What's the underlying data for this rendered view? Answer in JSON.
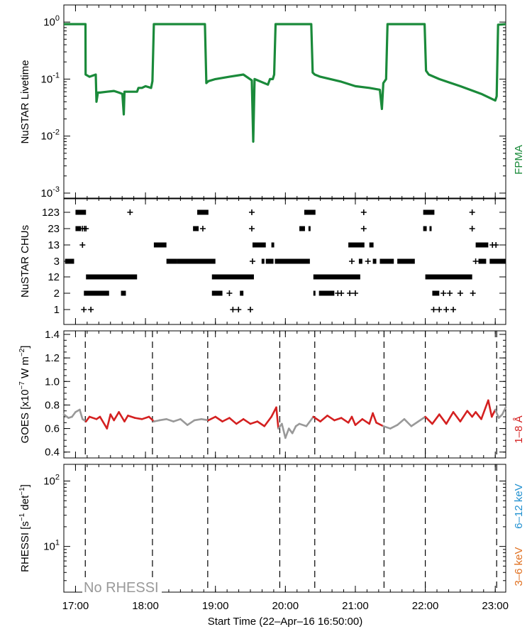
{
  "colors": {
    "fpma": "#1a8a3a",
    "goes_on": "#d42020",
    "goes_off": "#999999",
    "rhessi_low": "#e07020",
    "rhessi_high": "#2090d0",
    "no_rhessi": "#999999"
  },
  "x_axis": {
    "label": "Start Time (22–Apr–16 16:50:00)",
    "ticks": [
      {
        "t": 17,
        "label": "17:00"
      },
      {
        "t": 18,
        "label": "18:00"
      },
      {
        "t": 19,
        "label": "19:00"
      },
      {
        "t": 20,
        "label": "20:00"
      },
      {
        "t": 21,
        "label": "21:00"
      },
      {
        "t": 22,
        "label": "22:00"
      },
      {
        "t": 23,
        "label": "23:00"
      }
    ],
    "range_hours": [
      16.8333,
      23.15
    ]
  },
  "chart_data": [
    {
      "type": "line",
      "ylabel": "NuSTAR Livetime",
      "yscale": "log",
      "ylim_log10": [
        -3.1,
        0.3
      ],
      "y_ticks": [
        {
          "exp": "0",
          "value": 1
        },
        {
          "exp": "-1",
          "value": 0.1
        },
        {
          "exp": "-2",
          "value": 0.01
        },
        {
          "exp": "-3",
          "value": 0.001
        }
      ],
      "legend": "FPMA",
      "series": [
        {
          "name": "FPMA",
          "x": [
            16.833,
            17.143,
            17.145,
            17.2,
            17.29,
            17.3,
            17.32,
            17.35,
            17.45,
            17.55,
            17.62,
            17.67,
            17.69,
            17.7,
            17.88,
            17.9,
            17.95,
            18.0,
            18.08,
            18.1,
            18.12,
            18.15,
            18.7,
            18.8,
            18.85,
            18.87,
            18.9,
            19.0,
            19.2,
            19.4,
            19.52,
            19.54,
            19.56,
            19.75,
            19.78,
            19.82,
            19.84,
            19.86,
            19.95,
            20.05,
            20.2,
            20.37,
            20.39,
            20.42,
            20.5,
            20.8,
            21.0,
            21.2,
            21.35,
            21.38,
            21.4,
            21.44,
            21.46,
            21.48,
            21.6,
            21.85,
            21.99,
            22.01,
            22.05,
            22.2,
            22.5,
            22.8,
            23.0,
            23.02,
            23.04,
            23.15
          ],
          "y": [
            0.92,
            0.92,
            0.12,
            0.11,
            0.12,
            0.04,
            0.058,
            0.058,
            0.06,
            0.062,
            0.058,
            0.055,
            0.024,
            0.06,
            0.06,
            0.07,
            0.07,
            0.075,
            0.07,
            0.092,
            0.92,
            0.92,
            0.92,
            0.92,
            0.92,
            0.085,
            0.092,
            0.1,
            0.11,
            0.12,
            0.095,
            0.008,
            0.1,
            0.08,
            0.1,
            0.1,
            0.12,
            0.92,
            0.92,
            0.92,
            0.92,
            0.92,
            0.13,
            0.12,
            0.11,
            0.09,
            0.075,
            0.07,
            0.065,
            0.03,
            0.085,
            0.1,
            0.92,
            0.92,
            0.92,
            0.92,
            0.92,
            0.14,
            0.12,
            0.1,
            0.075,
            0.055,
            0.042,
            0.05,
            0.9,
            0.92
          ]
        }
      ]
    },
    {
      "type": "scatter",
      "ylabel": "NuSTAR CHUs",
      "categories": [
        "123",
        "23",
        "13",
        "3",
        "12",
        "2",
        "1"
      ],
      "points": {
        "123": [
          [
            17.0,
            17.15
          ],
          [
            17.78
          ],
          [
            18.74,
            18.9
          ],
          [
            19.52
          ],
          [
            20.27,
            20.43
          ],
          [
            21.12
          ],
          [
            21.97,
            22.13
          ],
          [
            22.67
          ]
        ],
        "23": [
          [
            17.0,
            17.08
          ],
          [
            17.1
          ],
          [
            17.13
          ],
          [
            17.15
          ],
          [
            18.68,
            18.76
          ],
          [
            18.82
          ],
          [
            19.52
          ],
          [
            20.2,
            20.28
          ],
          [
            20.33,
            20.36
          ],
          [
            21.12
          ],
          [
            21.97,
            22.02
          ],
          [
            22.06,
            22.09
          ],
          [
            22.67
          ]
        ],
        "13": [
          [
            17.1
          ],
          [
            18.12,
            18.3
          ],
          [
            19.53,
            19.72
          ],
          [
            19.8,
            19.84
          ],
          [
            20.9,
            21.13
          ],
          [
            21.2,
            21.26
          ],
          [
            22.72,
            22.9
          ],
          [
            22.96
          ],
          [
            23.01
          ]
        ],
        "3": [
          [
            16.85,
            16.98
          ],
          [
            18.3,
            18.45
          ],
          [
            18.45,
            19.0
          ],
          [
            19.53
          ],
          [
            19.66,
            19.7
          ],
          [
            19.72,
            19.83
          ],
          [
            19.85,
            20.35
          ],
          [
            20.95
          ],
          [
            21.05,
            21.1
          ],
          [
            21.18
          ],
          [
            21.25,
            21.3
          ],
          [
            21.35,
            21.55
          ],
          [
            21.6,
            21.85
          ],
          [
            22.72
          ],
          [
            22.76,
            22.87
          ],
          [
            22.92,
            23.15
          ]
        ],
        "12": [
          [
            17.15,
            17.88
          ],
          [
            18.95,
            19.55
          ],
          [
            20.4,
            21.07
          ],
          [
            22.0,
            22.67
          ]
        ],
        "2": [
          [
            17.12,
            17.48
          ],
          [
            17.65,
            17.72
          ],
          [
            18.95,
            19.1
          ],
          [
            19.2
          ],
          [
            19.35,
            19.4
          ],
          [
            20.4,
            20.43
          ],
          [
            20.48,
            20.7
          ],
          [
            20.75
          ],
          [
            20.8
          ],
          [
            20.92
          ],
          [
            21.0
          ],
          [
            22.1,
            22.2
          ],
          [
            22.26
          ],
          [
            22.35
          ],
          [
            22.5
          ],
          [
            22.68
          ]
        ],
        "1": [
          [
            17.12
          ],
          [
            17.22
          ],
          [
            19.25
          ],
          [
            19.33
          ],
          [
            19.5
          ],
          [
            22.12
          ],
          [
            22.2
          ],
          [
            22.3
          ],
          [
            22.4
          ]
        ]
      }
    },
    {
      "type": "line",
      "ylabel": "GOES [x10⁻⁷ W m⁻²]",
      "ylabel_prefix": "GOES [x10",
      "ylabel_exp1": "−7",
      "ylabel_mid": " W m",
      "ylabel_exp2": "−2",
      "ylabel_suffix": "]",
      "ylim": [
        0.35,
        1.43
      ],
      "y_ticks": [
        {
          "value": 0.4,
          "label": "0.4"
        },
        {
          "value": 0.6,
          "label": "0.6"
        },
        {
          "value": 0.8,
          "label": "0.8"
        },
        {
          "value": 1.0,
          "label": "1.0"
        },
        {
          "value": 1.2,
          "label": "1.2"
        },
        {
          "value": 1.4,
          "label": "1.4"
        }
      ],
      "legend": "1–8 Å",
      "series": [
        {
          "name": "1–8 Å",
          "x": [
            16.833,
            16.9,
            16.95,
            17.0,
            17.06,
            17.1,
            17.15,
            17.2,
            17.3,
            17.35,
            17.45,
            17.5,
            17.55,
            17.62,
            17.7,
            17.75,
            17.85,
            17.95,
            18.05,
            18.12,
            18.2,
            18.3,
            18.4,
            18.5,
            18.6,
            18.7,
            18.8,
            18.9,
            19.0,
            19.1,
            19.2,
            19.3,
            19.4,
            19.5,
            19.6,
            19.7,
            19.8,
            19.87,
            19.9,
            19.95,
            20.0,
            20.05,
            20.1,
            20.15,
            20.2,
            20.3,
            20.4,
            20.5,
            20.6,
            20.7,
            20.8,
            20.9,
            20.95,
            21.0,
            21.1,
            21.2,
            21.25,
            21.3,
            21.4,
            21.5,
            21.6,
            21.7,
            21.8,
            21.9,
            22.0,
            22.1,
            22.2,
            22.3,
            22.4,
            22.5,
            22.6,
            22.67,
            22.72,
            22.8,
            22.9,
            22.95,
            23.0,
            23.05,
            23.1,
            23.15
          ],
          "y": [
            0.72,
            0.69,
            0.7,
            0.74,
            0.76,
            0.68,
            0.66,
            0.7,
            0.68,
            0.7,
            0.6,
            0.72,
            0.67,
            0.74,
            0.66,
            0.71,
            0.69,
            0.68,
            0.7,
            0.66,
            0.67,
            0.68,
            0.66,
            0.68,
            0.63,
            0.67,
            0.68,
            0.67,
            0.7,
            0.66,
            0.69,
            0.64,
            0.68,
            0.64,
            0.66,
            0.62,
            0.7,
            0.78,
            0.6,
            0.64,
            0.52,
            0.6,
            0.56,
            0.62,
            0.64,
            0.62,
            0.7,
            0.66,
            0.71,
            0.67,
            0.69,
            0.65,
            0.7,
            0.63,
            0.68,
            0.64,
            0.73,
            0.65,
            0.62,
            0.6,
            0.63,
            0.68,
            0.62,
            0.66,
            0.7,
            0.64,
            0.72,
            0.64,
            0.74,
            0.66,
            0.75,
            0.7,
            0.74,
            0.68,
            0.84,
            0.7,
            0.76,
            0.69,
            0.72,
            0.78
          ],
          "gray_ranges": [
            [
              16.833,
              17.14
            ],
            [
              18.1,
              18.85
            ],
            [
              19.92,
              20.42
            ],
            [
              21.41,
              22.0
            ],
            [
              23.02,
              23.15
            ]
          ]
        }
      ]
    },
    {
      "type": "line",
      "ylabel_prefix": "RHESSI [s",
      "ylabel_exp1": "−1",
      "ylabel_mid": " det",
      "ylabel_exp2": "−1",
      "ylabel_suffix": "]",
      "yscale": "log",
      "ylim": [
        2,
        180
      ],
      "y_ticks": [
        {
          "value": 10,
          "base": "10",
          "exp": "1"
        },
        {
          "value": 100,
          "base": "10",
          "exp": "2"
        }
      ],
      "legend": [
        "3–6 keV",
        "6–12 keV"
      ],
      "annotation": "No RHESSI",
      "series": []
    }
  ],
  "vlines": [
    17.14,
    18.1,
    18.89,
    19.92,
    20.42,
    21.41,
    22.0,
    23.02
  ]
}
